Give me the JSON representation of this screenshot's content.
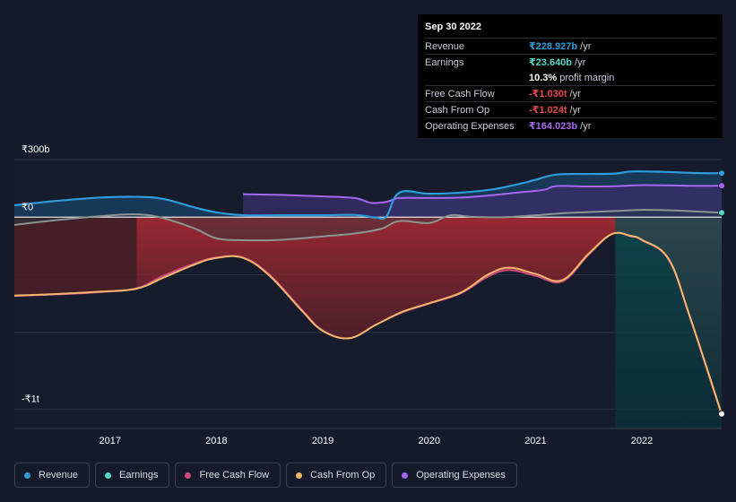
{
  "tooltip": {
    "date": "Sep 30 2022",
    "rows": [
      {
        "label": "Revenue",
        "value": "₹228.927b",
        "unit": "/yr",
        "color": "#2d9cdb"
      },
      {
        "label": "Earnings",
        "value": "₹23.640b",
        "unit": "/yr",
        "color": "#56d9c9"
      },
      {
        "label": "",
        "value": "10.3%",
        "unit": "profit margin",
        "color": "#ffffff"
      },
      {
        "label": "Free Cash Flow",
        "value": "-₹1.030t",
        "unit": "/yr",
        "color": "#e5484d"
      },
      {
        "label": "Cash From Op",
        "value": "-₹1.024t",
        "unit": "/yr",
        "color": "#e5484d"
      },
      {
        "label": "Operating Expenses",
        "value": "₹164.023b",
        "unit": "/yr",
        "color": "#a367f0"
      }
    ]
  },
  "legend": [
    {
      "label": "Revenue",
      "color": "#2d9cdb"
    },
    {
      "label": "Earnings",
      "color": "#56d9c9"
    },
    {
      "label": "Free Cash Flow",
      "color": "#d1487f"
    },
    {
      "label": "Cash From Op",
      "color": "#f2b66b"
    },
    {
      "label": "Operating Expenses",
      "color": "#a367f0"
    }
  ],
  "chart_data": {
    "type": "area",
    "title": "",
    "xlabel": "",
    "ylabel": "",
    "y_tick_labels": [
      {
        "value": 300,
        "label": "₹300b"
      },
      {
        "value": 0,
        "label": "₹0"
      },
      {
        "value": -1000,
        "label": "-₹1t"
      }
    ],
    "ylim": [
      -1100,
      300
    ],
    "xlim": [
      2016.1,
      2022.75
    ],
    "x_ticks": [
      {
        "value": 2017,
        "label": "2017"
      },
      {
        "value": 2018,
        "label": "2018"
      },
      {
        "value": 2019,
        "label": "2019"
      },
      {
        "value": 2020,
        "label": "2020"
      },
      {
        "value": 2021,
        "label": "2021"
      },
      {
        "value": 2022,
        "label": "2022"
      }
    ],
    "units": "₹ billions",
    "series": [
      {
        "name": "Revenue",
        "color": "#2d9cdb",
        "points": [
          [
            2016.1,
            62
          ],
          [
            2016.5,
            85
          ],
          [
            2016.9,
            102
          ],
          [
            2017.25,
            106
          ],
          [
            2017.5,
            95
          ],
          [
            2017.8,
            50
          ],
          [
            2018.0,
            25
          ],
          [
            2018.25,
            10
          ],
          [
            2018.6,
            10
          ],
          [
            2019.0,
            10
          ],
          [
            2019.3,
            12
          ],
          [
            2019.5,
            -2
          ],
          [
            2019.6,
            5
          ],
          [
            2019.72,
            128
          ],
          [
            2020.0,
            122
          ],
          [
            2020.3,
            128
          ],
          [
            2020.6,
            145
          ],
          [
            2020.9,
            180
          ],
          [
            2021.0,
            195
          ],
          [
            2021.2,
            222
          ],
          [
            2021.5,
            225
          ],
          [
            2021.75,
            227
          ],
          [
            2021.9,
            238
          ],
          [
            2022.2,
            236
          ],
          [
            2022.5,
            230
          ],
          [
            2022.75,
            228.9
          ]
        ]
      },
      {
        "name": "Earnings",
        "color": "#56d9c9",
        "points": [
          [
            2016.1,
            -40
          ],
          [
            2016.5,
            -15
          ],
          [
            2016.9,
            5
          ],
          [
            2017.25,
            15
          ],
          [
            2017.5,
            -5
          ],
          [
            2017.8,
            -60
          ],
          [
            2018.0,
            -110
          ],
          [
            2018.25,
            -120
          ],
          [
            2018.6,
            -118
          ],
          [
            2019.0,
            -100
          ],
          [
            2019.3,
            -85
          ],
          [
            2019.55,
            -60
          ],
          [
            2019.72,
            -20
          ],
          [
            2020.0,
            -30
          ],
          [
            2020.2,
            10
          ],
          [
            2020.4,
            2
          ],
          [
            2020.7,
            0
          ],
          [
            2021.0,
            10
          ],
          [
            2021.3,
            22
          ],
          [
            2021.75,
            32
          ],
          [
            2022.0,
            38
          ],
          [
            2022.3,
            35
          ],
          [
            2022.75,
            23.6
          ]
        ]
      },
      {
        "name": "Free Cash Flow",
        "color": "#d1487f",
        "points": [
          [
            2016.1,
            -410
          ],
          [
            2016.5,
            -402
          ],
          [
            2016.9,
            -390
          ],
          [
            2017.25,
            -370
          ],
          [
            2017.5,
            -305
          ],
          [
            2017.8,
            -240
          ],
          [
            2018.0,
            -210
          ],
          [
            2018.25,
            -210
          ],
          [
            2018.5,
            -300
          ],
          [
            2018.8,
            -480
          ],
          [
            2019.0,
            -590
          ],
          [
            2019.25,
            -630
          ],
          [
            2019.5,
            -560
          ],
          [
            2019.75,
            -495
          ],
          [
            2020.0,
            -450
          ],
          [
            2020.3,
            -395
          ],
          [
            2020.55,
            -310
          ],
          [
            2020.75,
            -275
          ],
          [
            2021.0,
            -305
          ],
          [
            2021.25,
            -335
          ],
          [
            2021.5,
            -195
          ],
          [
            2021.72,
            -88
          ],
          [
            2021.9,
            -100
          ],
          [
            2022.0,
            -120
          ],
          [
            2022.25,
            -220
          ],
          [
            2022.45,
            -520
          ],
          [
            2022.75,
            -1030
          ]
        ]
      },
      {
        "name": "Cash From Op",
        "color": "#f2b66b",
        "points": [
          [
            2016.1,
            -408
          ],
          [
            2016.5,
            -400
          ],
          [
            2016.9,
            -388
          ],
          [
            2017.25,
            -372
          ],
          [
            2017.5,
            -315
          ],
          [
            2017.8,
            -245
          ],
          [
            2018.0,
            -212
          ],
          [
            2018.25,
            -212
          ],
          [
            2018.5,
            -305
          ],
          [
            2018.8,
            -485
          ],
          [
            2019.0,
            -592
          ],
          [
            2019.25,
            -630
          ],
          [
            2019.5,
            -560
          ],
          [
            2019.75,
            -492
          ],
          [
            2020.0,
            -448
          ],
          [
            2020.3,
            -392
          ],
          [
            2020.55,
            -300
          ],
          [
            2020.75,
            -263
          ],
          [
            2021.0,
            -295
          ],
          [
            2021.25,
            -328
          ],
          [
            2021.5,
            -190
          ],
          [
            2021.72,
            -87
          ],
          [
            2021.9,
            -98
          ],
          [
            2022.0,
            -118
          ],
          [
            2022.25,
            -216
          ],
          [
            2022.45,
            -515
          ],
          [
            2022.75,
            -1024
          ]
        ]
      },
      {
        "name": "Operating Expenses",
        "color": "#a367f0",
        "points": [
          [
            2018.25,
            120
          ],
          [
            2018.6,
            116
          ],
          [
            2019.0,
            108
          ],
          [
            2019.3,
            100
          ],
          [
            2019.45,
            75
          ],
          [
            2019.6,
            80
          ],
          [
            2019.72,
            100
          ],
          [
            2020.0,
            100
          ],
          [
            2020.3,
            102
          ],
          [
            2020.6,
            115
          ],
          [
            2020.9,
            132
          ],
          [
            2021.0,
            137
          ],
          [
            2021.1,
            145
          ],
          [
            2021.2,
            162
          ],
          [
            2021.5,
            160
          ],
          [
            2021.75,
            161
          ],
          [
            2022.0,
            167
          ],
          [
            2022.3,
            165
          ],
          [
            2022.5,
            163
          ],
          [
            2022.75,
            164
          ]
        ]
      }
    ]
  }
}
